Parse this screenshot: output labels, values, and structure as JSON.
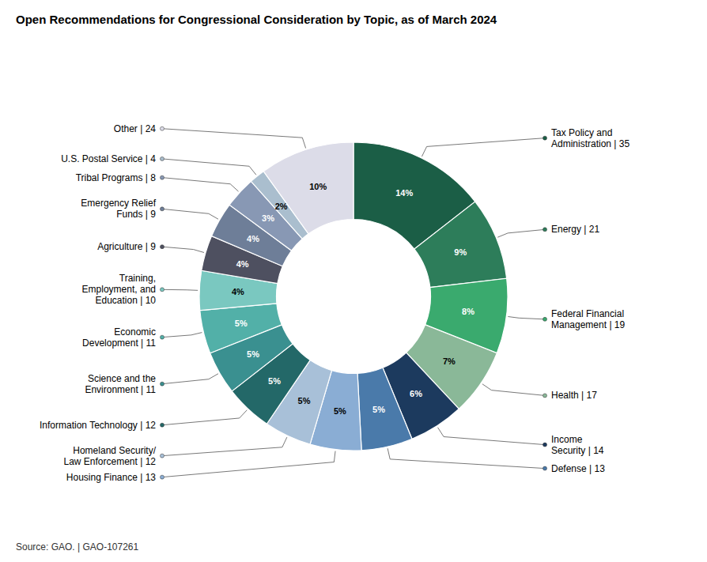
{
  "chart_data": {
    "type": "donut",
    "title": "Open Recommendations for Congressional Consideration by Topic, as of March 2024",
    "source": "Source: GAO.  |  GAO-107261",
    "categories": [
      "Tax Policy and\nAdministration | 35",
      "Energy | 21",
      "Federal Financial\nManagement | 19",
      "Health | 17",
      "Income\nSecurity | 14",
      "Defense | 13",
      "Housing Finance | 13",
      "Homeland Security/\nLaw Enforcement | 12",
      "Information Technology | 12",
      "Science and the\nEnvironment | 11",
      "Economic\nDevelopment | 11",
      "Training,\nEmployment, and\nEducation | 10",
      "Agriculture | 9",
      "Emergency Relief\nFunds | 9",
      "Tribal Programs | 8",
      "U.S. Postal Service | 4",
      "Other | 24"
    ],
    "values": [
      35,
      21,
      19,
      17,
      14,
      13,
      13,
      12,
      12,
      11,
      11,
      10,
      9,
      9,
      8,
      4,
      24
    ],
    "value_labels": [
      "14%",
      "9%",
      "8%",
      "7%",
      "6%",
      "5%",
      "5%",
      "5%",
      "5%",
      "5%",
      "5%",
      "4%",
      "4%",
      "4%",
      "3%",
      "2%",
      "10%"
    ],
    "data_labels": true,
    "colors": [
      "#1b5e46",
      "#2d7d5a",
      "#3aaa6e",
      "#8ab898",
      "#1c3a5e",
      "#4a7aaa",
      "#8aadd4",
      "#a8c0d8",
      "#236868",
      "#3a9090",
      "#52b0a8",
      "#7ac8c0",
      "#4e5060",
      "#6e7e98",
      "#8898b4",
      "#aabece",
      "#dcdce8"
    ]
  }
}
